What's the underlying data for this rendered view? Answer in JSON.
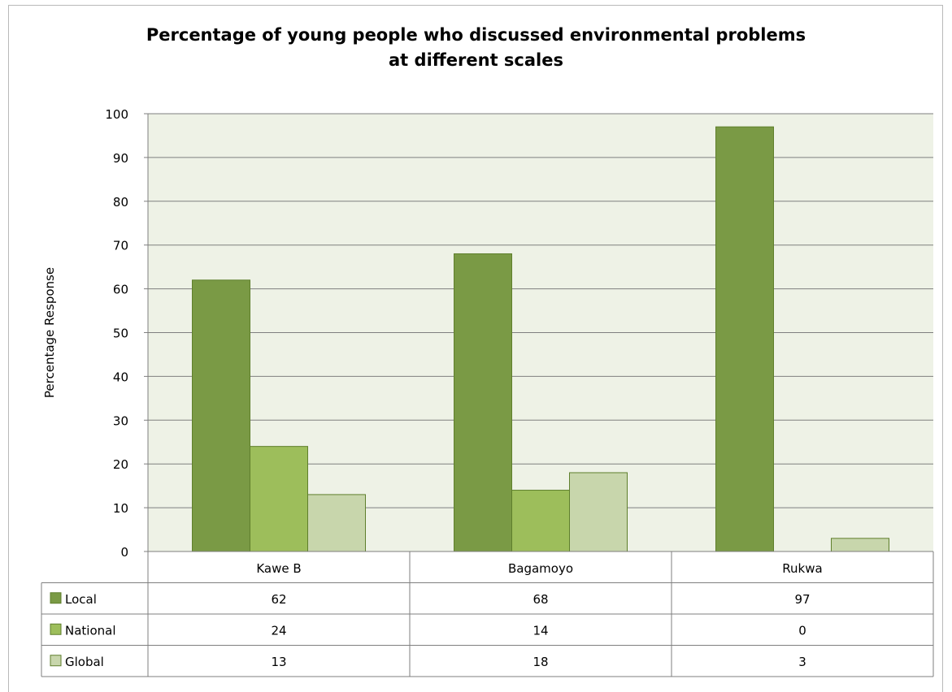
{
  "chart_data": {
    "type": "bar",
    "title_lines": [
      "Percentage of young people who discussed environmental problems",
      "at different scales"
    ],
    "ylabel": "Percentage Response",
    "xlabel": "",
    "ylim": [
      0,
      100
    ],
    "yticks": [
      0,
      10,
      20,
      30,
      40,
      50,
      60,
      70,
      80,
      90,
      100
    ],
    "grid": true,
    "legend": "data-table",
    "categories": [
      "Kawe B",
      "Bagamoyo",
      "Rukwa"
    ],
    "series": [
      {
        "name": "Local",
        "values": [
          62,
          68,
          97
        ],
        "value_labels": [
          "62",
          "68",
          "97"
        ],
        "color": "#7a9a45"
      },
      {
        "name": "National",
        "values": [
          24,
          14,
          0
        ],
        "value_labels": [
          "24",
          "14",
          "0"
        ],
        "color": "#9dbe5b"
      },
      {
        "name": "Global",
        "values": [
          13,
          18,
          3
        ],
        "value_labels": [
          "13",
          "18",
          "3"
        ],
        "color": "#c8d6ac"
      }
    ],
    "colors": {
      "plot_bg": "#eef2e6",
      "grid": "#7f7f7f",
      "bar_stroke": "#5f7f2c"
    }
  }
}
